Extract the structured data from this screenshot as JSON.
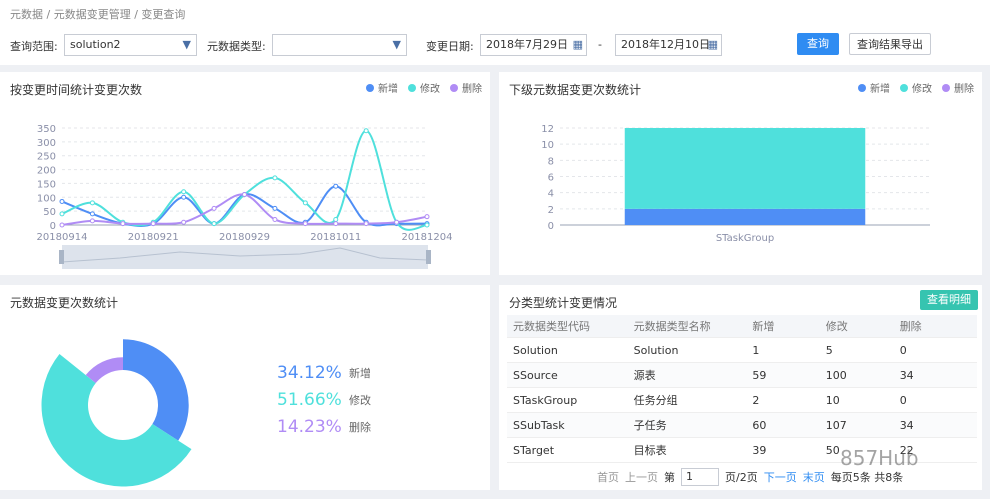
{
  "breadcrumb": [
    "元数据",
    "元数据变更管理",
    "变更查询"
  ],
  "filters": {
    "scope_label": "查询范围:",
    "scope_value": "solution2",
    "type_label": "元数据类型:",
    "date_label": "变更日期:",
    "date_from": "2018年7月29日",
    "date_sep": "-",
    "date_to": "2018年12月10日"
  },
  "buttons": {
    "query": "查询",
    "export": "查询结果导出"
  },
  "line_panel": {
    "title": "按变更时间统计变更次数",
    "type": "line",
    "categories": [
      "20180914",
      null,
      null,
      "20180921",
      null,
      null,
      "20180929",
      null,
      null,
      "20181011",
      null,
      null,
      "20181204"
    ],
    "ylim": [
      0,
      350
    ],
    "yticks": [
      0,
      50,
      100,
      150,
      200,
      250,
      300,
      350
    ],
    "grid": true,
    "series": [
      {
        "name": "新增",
        "color": "#4f8ef5",
        "values": [
          85,
          40,
          5,
          5,
          100,
          5,
          110,
          60,
          10,
          140,
          10,
          5,
          5
        ]
      },
      {
        "name": "修改",
        "color": "#4fe0dc",
        "values": [
          40,
          80,
          10,
          10,
          120,
          5,
          110,
          170,
          80,
          20,
          340,
          10,
          0
        ]
      },
      {
        "name": "删除",
        "color": "#b08cf5",
        "values": [
          0,
          15,
          5,
          5,
          10,
          60,
          110,
          20,
          5,
          5,
          5,
          10,
          30
        ]
      }
    ]
  },
  "bar_panel": {
    "title": "下级元数据变更次数统计",
    "type": "bar",
    "stacked": true,
    "categories": [
      "STaskGroup"
    ],
    "ylim": [
      0,
      12
    ],
    "yticks": [
      0,
      2,
      4,
      6,
      8,
      10,
      12
    ],
    "grid": true,
    "series": [
      {
        "name": "新增",
        "color": "#4f8ef5",
        "values": [
          2
        ]
      },
      {
        "name": "修改",
        "color": "#4fe0dc",
        "values": [
          10
        ]
      },
      {
        "name": "删除",
        "color": "#b08cf5",
        "values": [
          0
        ]
      }
    ]
  },
  "pie_panel": {
    "title": "元数据变更次数统计",
    "type": "pie",
    "categories": [
      "新增",
      "修改",
      "删除"
    ],
    "values": [
      34.12,
      51.66,
      14.23
    ],
    "value_labels": [
      "34.12%",
      "51.66%",
      "14.23%"
    ],
    "colors": [
      "#4f8ef5",
      "#4fe0dc",
      "#b08cf5"
    ]
  },
  "table_panel": {
    "title": "分类型统计变更情况",
    "button": "查看明细",
    "headers": [
      "元数据类型代码",
      "元数据类型名称",
      "新增",
      "修改",
      "删除"
    ],
    "rows": [
      [
        "Solution",
        "Solution",
        "1",
        "5",
        "0"
      ],
      [
        "SSource",
        "源表",
        "59",
        "100",
        "34"
      ],
      [
        "STaskGroup",
        "任务分组",
        "2",
        "10",
        "0"
      ],
      [
        "SSubTask",
        "子任务",
        "60",
        "107",
        "34"
      ],
      [
        "STarget",
        "目标表",
        "39",
        "50",
        "22"
      ]
    ],
    "pagination": [
      "首页",
      "上一页",
      "第",
      "1",
      "页/2页",
      "下一页",
      "末页",
      "每页5条 共8条"
    ]
  },
  "watermark": "857Hub"
}
